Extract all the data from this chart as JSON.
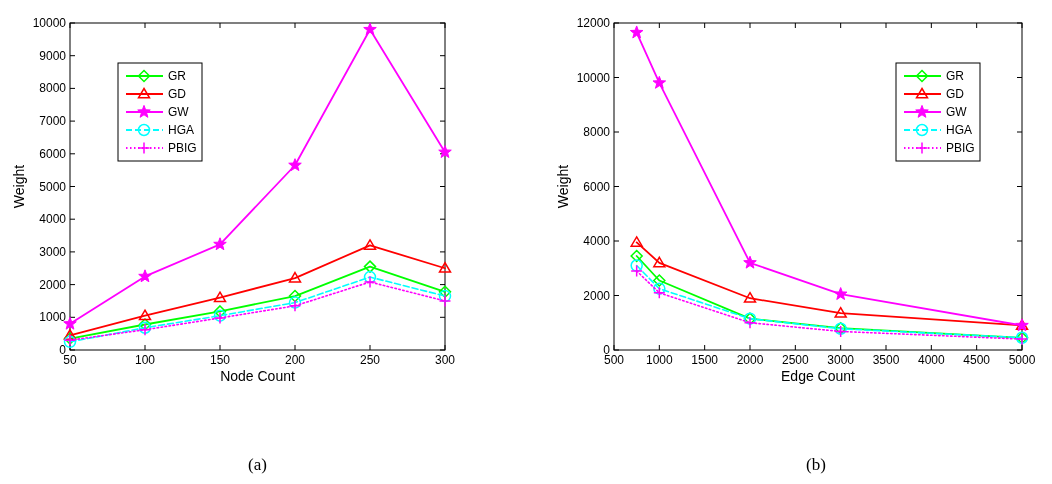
{
  "chart_data": [
    {
      "type": "line",
      "xlabel": "Node Count",
      "ylabel": "Weight",
      "x": [
        50,
        100,
        150,
        200,
        250,
        300
      ],
      "xlim": [
        50,
        300
      ],
      "xticks": [
        50,
        100,
        150,
        200,
        250,
        300
      ],
      "ylim": [
        0,
        10000
      ],
      "yticks": [
        0,
        1000,
        2000,
        3000,
        4000,
        5000,
        6000,
        7000,
        8000,
        9000,
        10000
      ],
      "legend": "top left",
      "annotations": [
        "(a)"
      ],
      "series": [
        {
          "name": "GR",
          "color": "#00ff00",
          "marker": "diamond",
          "line_style": "solid",
          "values": [
            350,
            780,
            1180,
            1650,
            2550,
            1780
          ]
        },
        {
          "name": "GD",
          "color": "#ff0000",
          "marker": "triangle",
          "line_style": "solid",
          "values": [
            450,
            1050,
            1600,
            2200,
            3200,
            2500
          ]
        },
        {
          "name": "GW",
          "color": "#ff00ff",
          "marker": "star",
          "line_style": "solid",
          "values": [
            800,
            2250,
            3230,
            5650,
            9800,
            6050
          ]
        },
        {
          "name": "HGA",
          "color": "#00ffff",
          "marker": "circle",
          "line_style": "dashed",
          "values": [
            250,
            680,
            1050,
            1450,
            2230,
            1650
          ]
        },
        {
          "name": "PBIG",
          "color": "#ff00ff",
          "marker": "cross",
          "line_style": "dotted",
          "values": [
            300,
            620,
            980,
            1350,
            2080,
            1500
          ]
        }
      ]
    },
    {
      "type": "line",
      "xlabel": "Edge Count",
      "ylabel": "Weight",
      "x": [
        750,
        1000,
        2000,
        3000,
        5000
      ],
      "xlim": [
        500,
        5000
      ],
      "xticks": [
        500,
        1000,
        1500,
        2000,
        2500,
        3000,
        3500,
        4000,
        4500,
        5000
      ],
      "ylim": [
        0,
        12000
      ],
      "yticks": [
        0,
        2000,
        4000,
        6000,
        8000,
        10000,
        12000
      ],
      "legend": "top right",
      "annotations": [
        "(b)"
      ],
      "series": [
        {
          "name": "GR",
          "color": "#00ff00",
          "marker": "diamond",
          "line_style": "solid",
          "values": [
            3450,
            2550,
            1150,
            800,
            450
          ]
        },
        {
          "name": "GD",
          "color": "#ff0000",
          "marker": "triangle",
          "line_style": "solid",
          "values": [
            3950,
            3200,
            1900,
            1350,
            900
          ]
        },
        {
          "name": "GW",
          "color": "#ff00ff",
          "marker": "star",
          "line_style": "solid",
          "values": [
            11650,
            9800,
            3200,
            2050,
            900
          ]
        },
        {
          "name": "HGA",
          "color": "#00ffff",
          "marker": "circle",
          "line_style": "dashed",
          "values": [
            3100,
            2250,
            1150,
            780,
            450
          ]
        },
        {
          "name": "PBIG",
          "color": "#ff00ff",
          "marker": "cross",
          "line_style": "dotted",
          "values": [
            2900,
            2100,
            1000,
            680,
            400
          ]
        }
      ]
    }
  ]
}
